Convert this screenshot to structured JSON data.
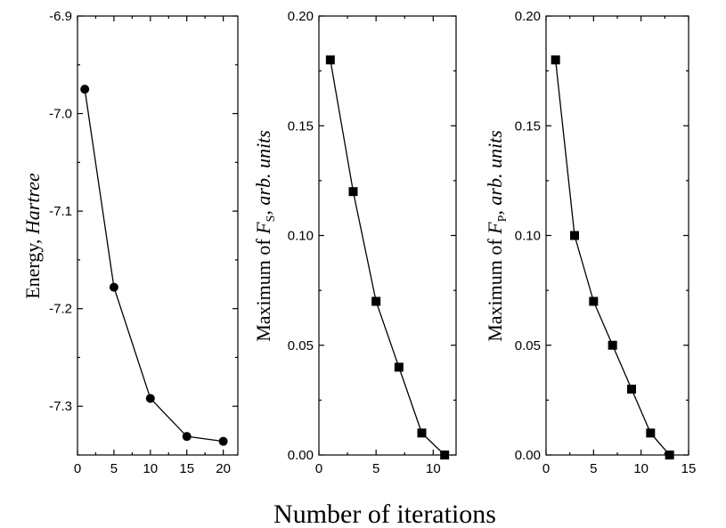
{
  "xlabel": "Number of iterations",
  "chart_data": [
    {
      "type": "line",
      "marker": "circle",
      "ylabel_main": "Energy, ",
      "ylabel_italic": "Hartree",
      "x": [
        1,
        5,
        10,
        15,
        20
      ],
      "y": [
        -6.975,
        -7.178,
        -7.292,
        -7.331,
        -7.336
      ],
      "xlim": [
        0,
        22
      ],
      "ylim": [
        -7.35,
        -6.9
      ],
      "xticks": [
        0,
        5,
        10,
        15,
        20
      ],
      "yticks": [
        -6.9,
        -7.0,
        -7.1,
        -7.2,
        -7.3
      ],
      "ytick_labels": [
        "-6.9",
        "-7.0",
        "-7.1",
        "-7.2",
        "-7.3"
      ],
      "grid": false
    },
    {
      "type": "line",
      "marker": "square",
      "ylabel_main": "Maximum of ",
      "ylabel_var": "F",
      "ylabel_sub": "S",
      "ylabel_italic": ", arb. units",
      "x": [
        1,
        3,
        5,
        7,
        9,
        11
      ],
      "y": [
        0.18,
        0.12,
        0.07,
        0.04,
        0.01,
        0.0
      ],
      "xlim": [
        0,
        12
      ],
      "ylim": [
        0,
        0.2
      ],
      "xticks": [
        0,
        5,
        10
      ],
      "yticks": [
        0.0,
        0.05,
        0.1,
        0.15,
        0.2
      ],
      "ytick_labels": [
        "0.00",
        "0.05",
        "0.10",
        "0.15",
        "0.20"
      ],
      "grid": false
    },
    {
      "type": "line",
      "marker": "square",
      "ylabel_main": "Maximum of ",
      "ylabel_var": "F",
      "ylabel_sub": "P",
      "ylabel_italic": ", arb. units",
      "x": [
        1,
        3,
        5,
        7,
        9,
        11,
        13
      ],
      "y": [
        0.18,
        0.1,
        0.07,
        0.05,
        0.03,
        0.01,
        0.0
      ],
      "xlim": [
        0,
        15
      ],
      "ylim": [
        0,
        0.2
      ],
      "xticks": [
        0,
        5,
        10,
        15
      ],
      "yticks": [
        0.0,
        0.05,
        0.1,
        0.15,
        0.2
      ],
      "ytick_labels": [
        "0.00",
        "0.05",
        "0.10",
        "0.15",
        "0.20"
      ],
      "grid": false
    }
  ]
}
